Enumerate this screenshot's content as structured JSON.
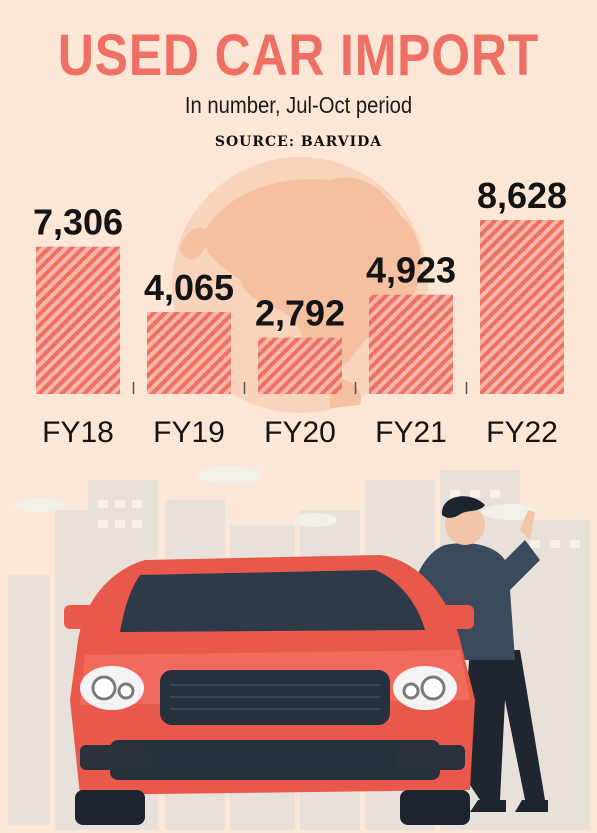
{
  "header": {
    "title": "USED CAR IMPORT",
    "subtitle": "In number, Jul-Oct period",
    "source": "SOURCE: BARVIDA"
  },
  "colors": {
    "background": "#fce6d6",
    "accent": "#ee6f63",
    "bar_stripe": "#ee6f63",
    "bar_fill": "#f7b7a6",
    "globe": "#f4c4a6",
    "car": "#e8594c"
  },
  "chart_data": {
    "type": "bar",
    "title": "USED CAR IMPORT",
    "subtitle": "In number, Jul-Oct period",
    "categories": [
      "FY18",
      "FY19",
      "FY20",
      "FY21",
      "FY22"
    ],
    "values": [
      7306,
      4065,
      2792,
      4923,
      8628
    ],
    "value_labels": [
      "7,306",
      "4,065",
      "2,792",
      "4,923",
      "8,628"
    ],
    "xlabel": "",
    "ylabel": "",
    "ylim": [
      0,
      8628
    ],
    "grid": false,
    "legend": "none"
  }
}
